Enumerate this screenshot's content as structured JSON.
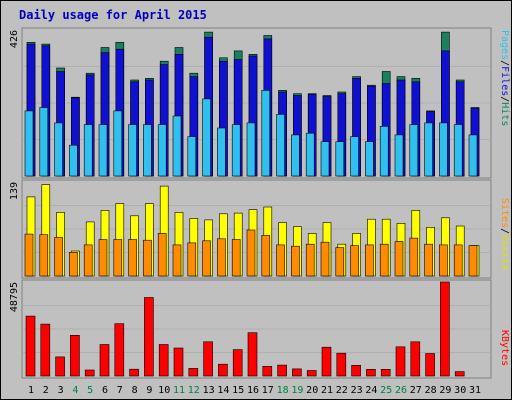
{
  "title": "Daily usage for April 2015",
  "colors": {
    "background": "#c0c0c0",
    "panel": "#c0c0c0",
    "grid": "#b0b0b0",
    "hits": "#1a8060",
    "files": "#1010d0",
    "pages": "#30c0f0",
    "visits": "#ffff00",
    "sites": "#ff8c00",
    "kbytes": "#ff0000",
    "weekday_label": "#000000",
    "weekend_label": "#008040",
    "title": "#0000c0"
  },
  "chart_data": [
    {
      "type": "bar",
      "panel": "hits-files-pages",
      "ymax_label": "426",
      "ylim": [
        0,
        426
      ],
      "right_labels": [
        "Pages",
        "/",
        "Files",
        "/",
        "Hits"
      ],
      "categories": [
        "1",
        "2",
        "3",
        "4",
        "5",
        "6",
        "7",
        "8",
        "9",
        "10",
        "11",
        "12",
        "13",
        "14",
        "15",
        "16",
        "17",
        "18",
        "19",
        "20",
        "21",
        "22",
        "23",
        "24",
        "25",
        "26",
        "27",
        "28",
        "29",
        "30",
        "31"
      ],
      "weekend_days": [
        "4",
        "5",
        "11",
        "12",
        "18",
        "19",
        "25",
        "26"
      ],
      "series": [
        {
          "name": "Hits",
          "values": [
            390,
            385,
            315,
            230,
            300,
            375,
            390,
            280,
            285,
            335,
            375,
            300,
            420,
            345,
            365,
            355,
            410,
            250,
            240,
            240,
            235,
            245,
            290,
            265,
            305,
            290,
            285,
            190,
            420,
            280,
            200
          ]
        },
        {
          "name": "Files",
          "values": [
            385,
            380,
            305,
            228,
            295,
            360,
            370,
            275,
            280,
            325,
            355,
            290,
            405,
            335,
            340,
            350,
            400,
            245,
            235,
            238,
            232,
            240,
            285,
            262,
            270,
            280,
            275,
            188,
            365,
            275,
            198
          ]
        },
        {
          "name": "Pages",
          "values": [
            190,
            200,
            155,
            90,
            150,
            150,
            190,
            150,
            150,
            150,
            175,
            115,
            225,
            140,
            150,
            155,
            250,
            180,
            120,
            125,
            100,
            100,
            115,
            100,
            145,
            120,
            150,
            155,
            155,
            150,
            120
          ]
        }
      ]
    },
    {
      "type": "bar",
      "panel": "visits-sites",
      "ymax_label": "139",
      "ylim": [
        0,
        139
      ],
      "right_labels": [
        "Sites",
        "/",
        "Visits"
      ],
      "categories": [
        "1",
        "2",
        "3",
        "4",
        "5",
        "6",
        "7",
        "8",
        "9",
        "10",
        "11",
        "12",
        "13",
        "14",
        "15",
        "16",
        "17",
        "18",
        "19",
        "20",
        "21",
        "22",
        "23",
        "24",
        "25",
        "26",
        "27",
        "28",
        "29",
        "30",
        "31"
      ],
      "series": [
        {
          "name": "Visits",
          "values": [
            117,
            135,
            94,
            37,
            80,
            97,
            107,
            89,
            107,
            133,
            94,
            85,
            83,
            92,
            93,
            98,
            102,
            79,
            73,
            63,
            79,
            47,
            63,
            84,
            84,
            78,
            97,
            72,
            86,
            74,
            45
          ]
        },
        {
          "name": "Sites",
          "values": [
            62,
            61,
            57,
            35,
            46,
            54,
            54,
            54,
            53,
            63,
            46,
            49,
            52,
            55,
            54,
            68,
            60,
            46,
            44,
            47,
            50,
            42,
            45,
            46,
            47,
            51,
            56,
            47,
            46,
            46,
            45
          ]
        }
      ]
    },
    {
      "type": "bar",
      "panel": "kbytes",
      "ymax_label": "48795",
      "ylim": [
        0,
        48795
      ],
      "right_labels": [
        "KBytes"
      ],
      "categories": [
        "1",
        "2",
        "3",
        "4",
        "5",
        "6",
        "7",
        "8",
        "9",
        "10",
        "11",
        "12",
        "13",
        "14",
        "15",
        "16",
        "17",
        "18",
        "19",
        "20",
        "21",
        "22",
        "23",
        "24",
        "25",
        "26",
        "27",
        "28",
        "29",
        "30",
        "31"
      ],
      "series": [
        {
          "name": "KBytes",
          "values": [
            31070,
            26920,
            9940,
            21120,
            3110,
            16360,
            27130,
            3510,
            40760,
            16360,
            14520,
            3930,
            17760,
            6140,
            13710,
            22490,
            5020,
            5660,
            3680,
            2850,
            14970,
            11840,
            5570,
            3480,
            3490,
            15170,
            17760,
            11690,
            48795,
            2280,
            0
          ]
        }
      ]
    }
  ]
}
